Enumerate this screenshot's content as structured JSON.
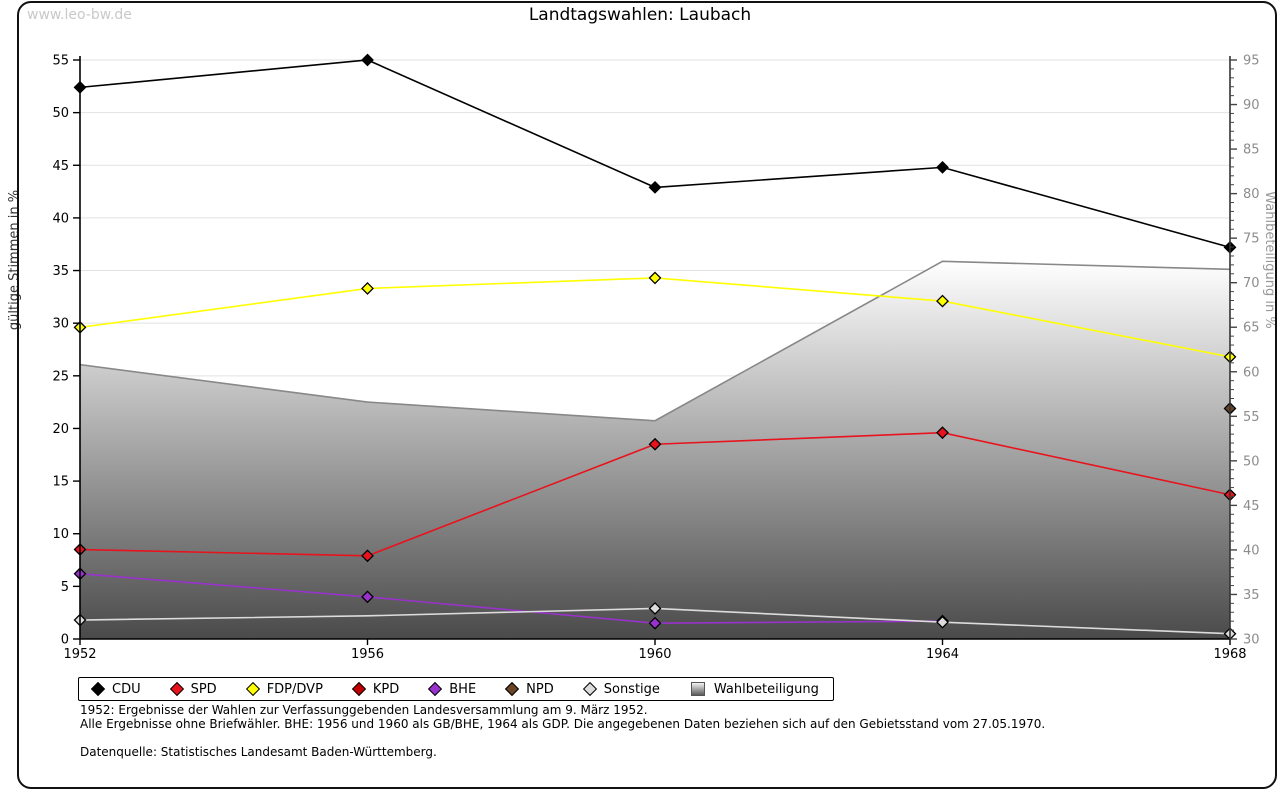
{
  "watermark": "www.leo-bw.de",
  "title": "Landtagswahlen: Laubach",
  "chart_data": {
    "type": "line",
    "title": "Landtagswahlen: Laubach",
    "x": [
      1952,
      1956,
      1960,
      1964,
      1968
    ],
    "left_axis": {
      "label": "gültige Stimmen in %",
      "min": 0,
      "max": 55,
      "tick_step": 5
    },
    "right_axis": {
      "label": "Wahlbeteiligung in %",
      "min": 30,
      "max": 95,
      "tick_step": 5,
      "minor_step": 1
    },
    "grid": "horizontal",
    "legend_position": "bottom",
    "series": [
      {
        "name": "CDU",
        "color": "#000000",
        "marker": "diamond",
        "axis": "left",
        "values": [
          52.4,
          55.0,
          42.9,
          44.8,
          37.2
        ]
      },
      {
        "name": "SPD",
        "color": "#e8131d",
        "marker": "diamond",
        "axis": "left",
        "values": [
          8.5,
          7.9,
          18.5,
          19.6,
          13.7
        ]
      },
      {
        "name": "FDP/DVP",
        "color": "#ffff00",
        "marker": "diamond",
        "axis": "left",
        "values": [
          29.6,
          33.3,
          34.3,
          32.1,
          26.8
        ]
      },
      {
        "name": "KPD",
        "color": "#c00000",
        "marker": "diamond",
        "axis": "left",
        "values": [
          null,
          null,
          null,
          null,
          null
        ]
      },
      {
        "name": "BHE",
        "color": "#9932cc",
        "marker": "diamond",
        "axis": "left",
        "values": [
          6.2,
          4.0,
          1.5,
          1.7,
          null
        ]
      },
      {
        "name": "NPD",
        "color": "#6a4426",
        "marker": "diamond",
        "axis": "left",
        "values": [
          null,
          null,
          null,
          null,
          21.9
        ]
      },
      {
        "name": "Sonstige",
        "color": "#dcdcdc",
        "marker": "diamond",
        "axis": "left",
        "values": [
          1.8,
          2.2,
          2.9,
          1.6,
          0.5
        ],
        "skip_markers": [
          1
        ]
      },
      {
        "name": "Wahlbeteiligung",
        "color": "#888888",
        "marker": "square",
        "axis": "right",
        "type": "area",
        "values": [
          60.8,
          56.6,
          54.5,
          72.4,
          71.5
        ],
        "fill_top": "#ffffff",
        "fill_bottom": "#4a4a4a"
      }
    ]
  },
  "footnotes": {
    "line1": "1952: Ergebnisse der Wahlen zur Verfassunggebenden Landesversammlung am 9. März 1952.",
    "line2": "Alle Ergebnisse ohne Briefwähler. BHE: 1956 und 1960 als GB/BHE, 1964 als GDP. Die angegebenen Daten beziehen sich auf den Gebietsstand vom 27.05.1970.",
    "line3": "Datenquelle: Statistisches Landesamt Baden-Württemberg."
  }
}
